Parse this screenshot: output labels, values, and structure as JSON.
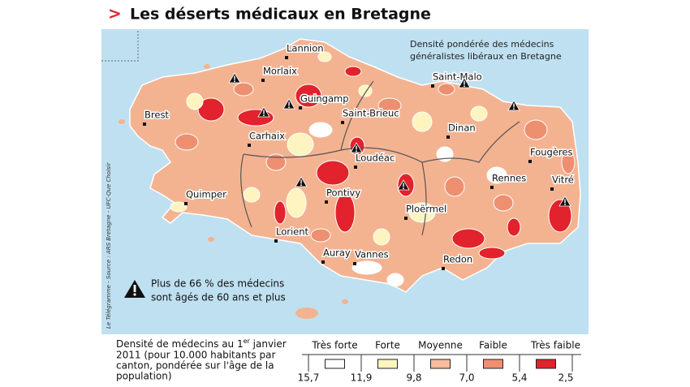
{
  "header": {
    "marker": ">",
    "title": "Les déserts médicaux en Bretagne"
  },
  "map": {
    "subtitle": [
      "Densité pondérée des médecins",
      "généralistes libéraux en Bretagne"
    ],
    "cities": [
      "Lannion",
      "Morlaix",
      "Saint-Malo",
      "Guingamp",
      "Brest",
      "Saint-Brieuc",
      "Carhaix",
      "Dinan",
      "Loudéac",
      "Fougères",
      "Rennes",
      "Vitré",
      "Quimper",
      "Pontivy",
      "Ploërmel",
      "Lorient",
      "Auray",
      "Vannes",
      "Redon"
    ],
    "warning_note": [
      "Plus de 66 % des médecins",
      "sont âgés de 60 ans et plus"
    ],
    "source": "Le Télégramme - Source : ARS Bretagne - UFC-Que Choisir"
  },
  "legend": {
    "description": {
      "first_before": "Densité de médecins au 1",
      "first_sup": "er",
      "first_after": " janvier",
      "lines": [
        "2011 (pour 10.000 habitants par",
        "canton, pondérée sur l'âge de la",
        "population)"
      ]
    },
    "classes": [
      {
        "label": "Très forte",
        "color": "#ffffff"
      },
      {
        "label": "Forte",
        "color": "#fdf4bf"
      },
      {
        "label": "Moyenne",
        "color": "#f6bc9b"
      },
      {
        "label": "Faible",
        "color": "#ee8f70"
      },
      {
        "label": "Très faible",
        "color": "#e2222c"
      }
    ],
    "thresholds": [
      "15,7",
      "11,9",
      "9,8",
      "7,0",
      "5,4",
      "2,5"
    ]
  }
}
